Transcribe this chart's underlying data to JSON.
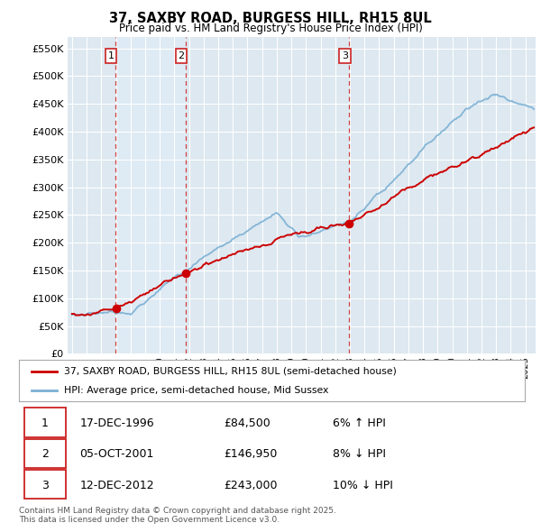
{
  "title": "37, SAXBY ROAD, BURGESS HILL, RH15 8UL",
  "subtitle": "Price paid vs. HM Land Registry's House Price Index (HPI)",
  "ylabel_ticks": [
    "£0",
    "£50K",
    "£100K",
    "£150K",
    "£200K",
    "£250K",
    "£300K",
    "£350K",
    "£400K",
    "£450K",
    "£500K",
    "£550K"
  ],
  "ytick_values": [
    0,
    50000,
    100000,
    150000,
    200000,
    250000,
    300000,
    350000,
    400000,
    450000,
    500000,
    550000
  ],
  "ylim": [
    0,
    570000
  ],
  "xlim_start": 1993.7,
  "xlim_end": 2025.7,
  "sale_dates": [
    1996.96,
    2001.77,
    2012.95
  ],
  "sale_prices": [
    84500,
    146950,
    243000
  ],
  "sale_labels": [
    "1",
    "2",
    "3"
  ],
  "vline_color": "#cc2222",
  "plot_bg_color": "#dde8f0",
  "fig_bg_color": "#ffffff",
  "grid_color": "#ffffff",
  "legend_entries": [
    "37, SAXBY ROAD, BURGESS HILL, RH15 8UL (semi-detached house)",
    "HPI: Average price, semi-detached house, Mid Sussex"
  ],
  "table_rows": [
    [
      "1",
      "17-DEC-1996",
      "£84,500",
      "6% ↑ HPI"
    ],
    [
      "2",
      "05-OCT-2001",
      "£146,950",
      "8% ↓ HPI"
    ],
    [
      "3",
      "12-DEC-2012",
      "£243,000",
      "10% ↓ HPI"
    ]
  ],
  "footnote": "Contains HM Land Registry data © Crown copyright and database right 2025.\nThis data is licensed under the Open Government Licence v3.0.",
  "red_line_color": "#cc0000",
  "blue_line_color": "#7ab0d4",
  "blue_fill_color": "#c5ddf0"
}
